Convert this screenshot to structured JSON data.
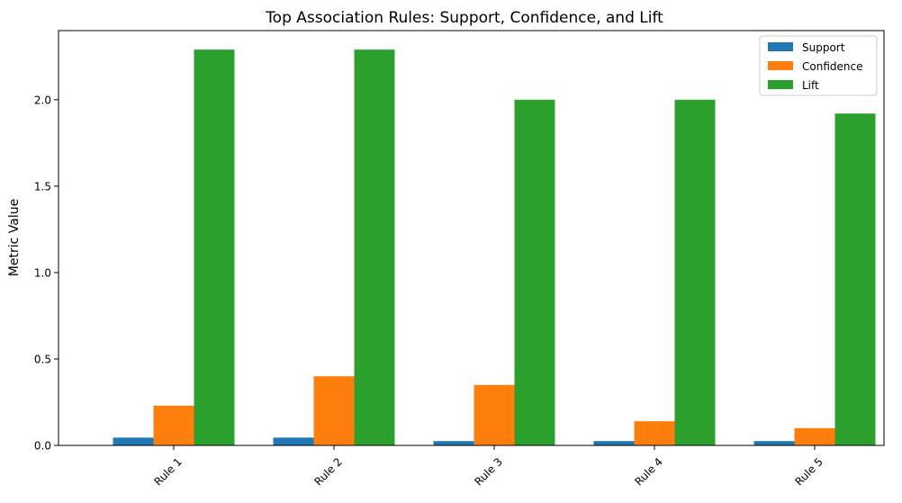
{
  "chart_data": {
    "type": "bar",
    "title": "Top Association Rules: Support, Confidence, and Lift",
    "xlabel": "",
    "ylabel": "Metric Value",
    "categories": [
      "Rule 1",
      "Rule 2",
      "Rule 3",
      "Rule 4",
      "Rule 5"
    ],
    "ylim": [
      0,
      2.4
    ],
    "yticks": [
      "0.0",
      "0.5",
      "1.0",
      "1.5",
      "2.0"
    ],
    "grid": false,
    "legend_position": "top-right",
    "series": [
      {
        "name": "Support",
        "color": "#1f77b4",
        "values": [
          0.045,
          0.045,
          0.025,
          0.025,
          0.025
        ]
      },
      {
        "name": "Confidence",
        "color": "#ff7f0e",
        "values": [
          0.23,
          0.4,
          0.35,
          0.14,
          0.1
        ]
      },
      {
        "name": "Lift",
        "color": "#2ca02c",
        "values": [
          2.29,
          2.29,
          2.0,
          2.0,
          1.92
        ]
      }
    ]
  }
}
